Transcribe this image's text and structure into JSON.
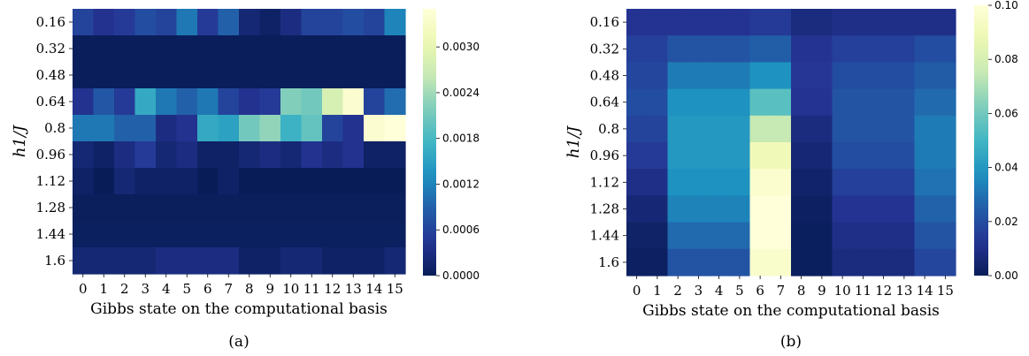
{
  "chart_data": [
    {
      "type": "heatmap",
      "caption": "(a)",
      "xlabel": "Gibbs state on the computational basis",
      "ylabel": "h1/J",
      "x": [
        "0",
        "1",
        "2",
        "3",
        "4",
        "5",
        "6",
        "7",
        "8",
        "9",
        "10",
        "11",
        "12",
        "13",
        "14",
        "15"
      ],
      "y": [
        "0.16",
        "0.32",
        "0.48",
        "0.64",
        "0.8",
        "0.96",
        "1.12",
        "1.28",
        "1.44",
        "1.6"
      ],
      "values": [
        [
          0.0006,
          0.0004,
          0.0005,
          0.0007,
          0.0006,
          0.0011,
          0.0005,
          0.0009,
          0.0002,
          0.0001,
          0.0003,
          0.0006,
          0.0006,
          0.0007,
          0.0006,
          0.0012
        ],
        [
          2e-05,
          2e-05,
          2e-05,
          2e-05,
          2e-05,
          2e-05,
          2e-05,
          2e-05,
          2e-05,
          2e-05,
          2e-05,
          2e-05,
          2e-05,
          2e-05,
          2e-05,
          2e-05
        ],
        [
          2e-05,
          2e-05,
          2e-05,
          2e-05,
          2e-05,
          2e-05,
          2e-05,
          2e-05,
          2e-05,
          2e-05,
          2e-05,
          2e-05,
          2e-05,
          2e-05,
          2e-05,
          2e-05
        ],
        [
          0.0004,
          0.0008,
          0.0005,
          0.0016,
          0.0011,
          0.0009,
          0.0011,
          0.0006,
          0.0004,
          0.0005,
          0.0022,
          0.0021,
          0.0028,
          0.0034,
          0.0006,
          0.001
        ],
        [
          0.0011,
          0.0011,
          0.0009,
          0.0009,
          0.0003,
          0.0004,
          0.0016,
          0.0015,
          0.0021,
          0.0023,
          0.0017,
          0.002,
          0.0006,
          0.0004,
          0.0034,
          0.0036
        ],
        [
          0.0002,
          0.0001,
          0.0003,
          0.0005,
          0.0002,
          0.0003,
          0.0001,
          0.0001,
          0.0002,
          0.0003,
          0.0002,
          0.0004,
          0.0003,
          0.0004,
          0.0001,
          0.0001
        ],
        [
          0.0001,
          0.0,
          0.0002,
          0.0001,
          0.0001,
          0.0001,
          0.0,
          0.0001,
          0.0,
          0.0,
          0.0,
          0.0,
          0.0,
          0.0,
          0.0,
          0.0
        ],
        [
          3e-05,
          3e-05,
          3e-05,
          3e-05,
          3e-05,
          3e-05,
          3e-05,
          3e-05,
          3e-05,
          3e-05,
          3e-05,
          3e-05,
          3e-05,
          3e-05,
          3e-05,
          3e-05
        ],
        [
          5e-05,
          5e-05,
          5e-05,
          5e-05,
          5e-05,
          5e-05,
          5e-05,
          5e-05,
          5e-05,
          5e-05,
          5e-05,
          5e-05,
          5e-05,
          5e-05,
          5e-05,
          5e-05
        ],
        [
          0.0002,
          0.0002,
          0.0002,
          0.0002,
          0.0003,
          0.0003,
          0.0003,
          0.0003,
          0.0001,
          0.0001,
          0.0002,
          0.0002,
          0.0001,
          0.0001,
          0.0001,
          0.0002
        ]
      ],
      "vmin": 0,
      "vmax": 0.0035,
      "colorbar_ticks": [
        0,
        0.0006,
        0.0012,
        0.0018,
        0.0024,
        0.003
      ],
      "colorbar_tick_labels": [
        "0.0000",
        "0.0006",
        "0.0012",
        "0.0018",
        "0.0024",
        "0.0030"
      ],
      "colormap": "YlGnBu"
    },
    {
      "type": "heatmap",
      "caption": "(b)",
      "xlabel": "Gibbs state on the computational basis",
      "ylabel": "h1/J",
      "x": [
        "0",
        "1",
        "2",
        "3",
        "4",
        "5",
        "6",
        "7",
        "8",
        "9",
        "10",
        "11",
        "12",
        "13",
        "14",
        "15"
      ],
      "y": [
        "0.16",
        "0.32",
        "0.48",
        "0.64",
        "0.8",
        "0.96",
        "1.12",
        "1.28",
        "1.44",
        "1.6"
      ],
      "values": [
        [
          0.012,
          0.012,
          0.012,
          0.012,
          0.012,
          0.012,
          0.014,
          0.014,
          0.008,
          0.008,
          0.01,
          0.01,
          0.01,
          0.01,
          0.01,
          0.01
        ],
        [
          0.016,
          0.016,
          0.022,
          0.022,
          0.022,
          0.022,
          0.025,
          0.025,
          0.012,
          0.012,
          0.016,
          0.016,
          0.016,
          0.016,
          0.02,
          0.02
        ],
        [
          0.018,
          0.018,
          0.032,
          0.032,
          0.032,
          0.032,
          0.038,
          0.038,
          0.013,
          0.013,
          0.02,
          0.02,
          0.02,
          0.02,
          0.024,
          0.024
        ],
        [
          0.02,
          0.02,
          0.038,
          0.038,
          0.038,
          0.038,
          0.055,
          0.055,
          0.012,
          0.012,
          0.022,
          0.022,
          0.022,
          0.022,
          0.028,
          0.028
        ],
        [
          0.017,
          0.017,
          0.04,
          0.04,
          0.04,
          0.04,
          0.075,
          0.075,
          0.008,
          0.008,
          0.022,
          0.022,
          0.022,
          0.022,
          0.032,
          0.032
        ],
        [
          0.014,
          0.014,
          0.04,
          0.04,
          0.04,
          0.04,
          0.09,
          0.09,
          0.006,
          0.006,
          0.02,
          0.02,
          0.02,
          0.02,
          0.032,
          0.032
        ],
        [
          0.01,
          0.01,
          0.038,
          0.038,
          0.038,
          0.038,
          0.097,
          0.097,
          0.004,
          0.004,
          0.016,
          0.016,
          0.016,
          0.016,
          0.03,
          0.03
        ],
        [
          0.006,
          0.006,
          0.034,
          0.034,
          0.034,
          0.034,
          0.1,
          0.1,
          0.002,
          0.002,
          0.012,
          0.012,
          0.012,
          0.012,
          0.026,
          0.026
        ],
        [
          0.003,
          0.003,
          0.028,
          0.028,
          0.028,
          0.028,
          0.1,
          0.1,
          0.001,
          0.001,
          0.01,
          0.01,
          0.01,
          0.01,
          0.022,
          0.022
        ],
        [
          0.002,
          0.002,
          0.022,
          0.022,
          0.022,
          0.022,
          0.096,
          0.096,
          0.001,
          0.001,
          0.008,
          0.008,
          0.008,
          0.008,
          0.018,
          0.018
        ]
      ],
      "vmin": 0,
      "vmax": 0.1,
      "colorbar_ticks": [
        0,
        0.02,
        0.04,
        0.06,
        0.08,
        0.1
      ],
      "colorbar_tick_labels": [
        "0.00",
        "0.02",
        "0.04",
        "0.06",
        "0.08",
        "0.10"
      ],
      "colormap": "YlGnBu"
    }
  ]
}
